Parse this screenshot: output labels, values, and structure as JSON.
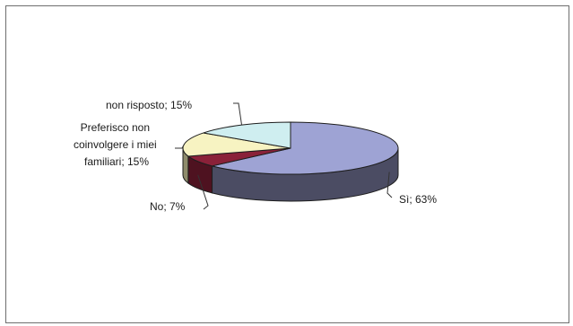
{
  "chart_data": {
    "type": "pie",
    "three_d": true,
    "slices": [
      {
        "label": "Sì",
        "value": 63,
        "color": "#9ea3d4",
        "side_color": "#4b4c63",
        "text": "Sì; 63%"
      },
      {
        "label": "No",
        "value": 7,
        "color": "#8a2139",
        "side_color": "#4e1220",
        "text": "No; 7%"
      },
      {
        "label": "Preferisco non coinvolgere i miei familiari",
        "value": 15,
        "color": "#f7f3c2",
        "side_color": "#8f8c6c",
        "text_lines": [
          "Preferisco non",
          "coinvolgere i miei",
          "familiari; 15%"
        ]
      },
      {
        "label": "non risposto",
        "value": 15,
        "color": "#cfeef0",
        "side_color": "#6e8788",
        "text": "non risposto; 15%"
      }
    ]
  }
}
